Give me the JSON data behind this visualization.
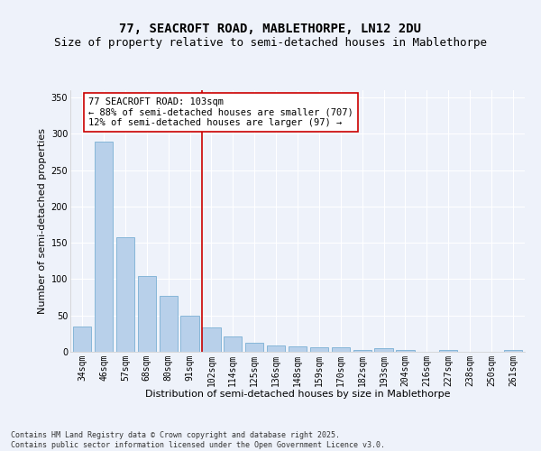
{
  "title1": "77, SEACROFT ROAD, MABLETHORPE, LN12 2DU",
  "title2": "Size of property relative to semi-detached houses in Mablethorpe",
  "xlabel": "Distribution of semi-detached houses by size in Mablethorpe",
  "ylabel": "Number of semi-detached properties",
  "categories": [
    "34sqm",
    "46sqm",
    "57sqm",
    "68sqm",
    "80sqm",
    "91sqm",
    "102sqm",
    "114sqm",
    "125sqm",
    "136sqm",
    "148sqm",
    "159sqm",
    "170sqm",
    "182sqm",
    "193sqm",
    "204sqm",
    "216sqm",
    "227sqm",
    "238sqm",
    "250sqm",
    "261sqm"
  ],
  "values": [
    35,
    289,
    158,
    104,
    77,
    50,
    33,
    21,
    12,
    9,
    7,
    6,
    6,
    3,
    5,
    3,
    0,
    3,
    0,
    0,
    3
  ],
  "bar_color": "#b8d0ea",
  "bar_edge_color": "#7aafd4",
  "vline_x_index": 6,
  "vline_color": "#cc0000",
  "annotation_text": "77 SEACROFT ROAD: 103sqm\n← 88% of semi-detached houses are smaller (707)\n12% of semi-detached houses are larger (97) →",
  "annotation_box_color": "#ffffff",
  "annotation_box_edge": "#cc0000",
  "ylim": [
    0,
    360
  ],
  "yticks": [
    0,
    50,
    100,
    150,
    200,
    250,
    300,
    350
  ],
  "footer_text": "Contains HM Land Registry data © Crown copyright and database right 2025.\nContains public sector information licensed under the Open Government Licence v3.0.",
  "background_color": "#eef2fa",
  "grid_color": "#ffffff",
  "title_fontsize": 10,
  "subtitle_fontsize": 9,
  "axis_label_fontsize": 8,
  "tick_fontsize": 7,
  "annotation_fontsize": 7.5,
  "footer_fontsize": 6
}
